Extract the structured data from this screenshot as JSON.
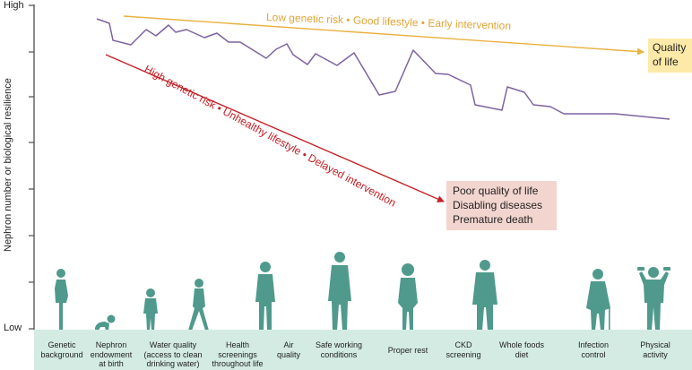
{
  "axis": {
    "y_title": "Nephron number or biological resilience",
    "y_high": "High",
    "y_low": "Low"
  },
  "trends": {
    "good": "Low genetic risk • Good lifestyle • Early intervention",
    "bad": "High genetic risk • Unhealthy lifestyle • Delayed intervention"
  },
  "outcomes": {
    "good_line1": "Quality",
    "good_line2": "of life",
    "poor_line1": "Poor quality of life",
    "poor_line2": "Disabling diseases",
    "poor_line3": "Premature death"
  },
  "categories": [
    {
      "line1": "Genetic",
      "line2": "background",
      "line3": ""
    },
    {
      "line1": "Nephron",
      "line2": "endowment",
      "line3": "at birth"
    },
    {
      "line1": "Water quality",
      "line2": "(access to clean",
      "line3": "drinking water)"
    },
    {
      "line1": "Health",
      "line2": "screenings",
      "line3": "throughout life"
    },
    {
      "line1": "Air",
      "line2": "quality",
      "line3": ""
    },
    {
      "line1": "Safe working",
      "line2": "conditions",
      "line3": ""
    },
    {
      "line1": "Proper rest",
      "line2": "",
      "line3": ""
    },
    {
      "line1": "CKD",
      "line2": "screening",
      "line3": ""
    },
    {
      "line1": "Whole foods",
      "line2": "diet",
      "line3": ""
    },
    {
      "line1": "Infection",
      "line2": "control",
      "line3": ""
    },
    {
      "line1": "Physical",
      "line2": "activity",
      "line3": ""
    }
  ],
  "colors": {
    "axis": "#4d4d4d",
    "resilience_line": "#7d62a0",
    "good_arrow": "#e9b13f",
    "bad_arrow": "#c42026",
    "figure": "#4f9a8c",
    "strip": "#d3ebe3"
  }
}
